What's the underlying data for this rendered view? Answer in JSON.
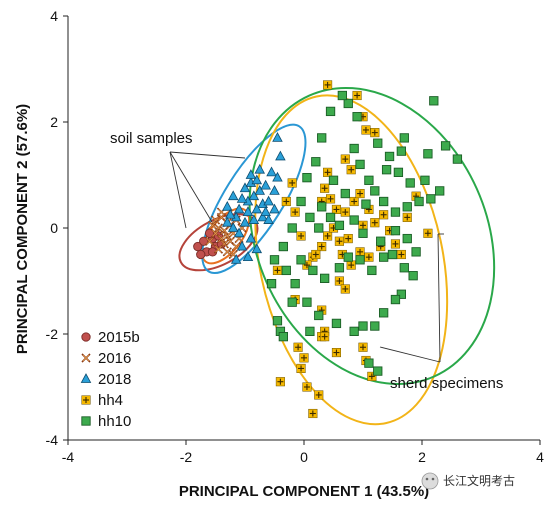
{
  "chart_data": {
    "type": "scatter",
    "xlabel": "PRINCIPAL COMPONENT 1 (43.5%)",
    "ylabel": "PRINCIPAL COMPONENT 2 (57.6%)",
    "xlim": [
      -4,
      4
    ],
    "ylim": [
      -4,
      4
    ],
    "xticks": [
      -4,
      -2,
      0,
      2,
      4
    ],
    "yticks": [
      -4,
      -2,
      0,
      2,
      4
    ],
    "grid": false,
    "legend_position": "bottom-left",
    "annotations": [
      "soil samples",
      "sherd specimens"
    ],
    "series": [
      {
        "name": "2015b",
        "marker": "circle",
        "color": "#c0504d",
        "edge": "#7a2a26",
        "points": [
          [
            -1.8,
            -0.35
          ],
          [
            -1.7,
            -0.25
          ],
          [
            -1.55,
            -0.2
          ],
          [
            -1.65,
            -0.45
          ],
          [
            -1.5,
            -0.35
          ],
          [
            -1.4,
            -0.3
          ],
          [
            -1.45,
            -0.15
          ],
          [
            -1.6,
            -0.1
          ],
          [
            -1.75,
            -0.5
          ],
          [
            -1.55,
            -0.45
          ]
        ]
      },
      {
        "name": "2016",
        "marker": "x",
        "color": "#e59a4a",
        "edge": "#8a3b16",
        "points": [
          [
            -1.5,
            0.15
          ],
          [
            -1.4,
            0.2
          ],
          [
            -1.3,
            0.1
          ],
          [
            -1.45,
            0.0
          ],
          [
            -1.35,
            -0.05
          ],
          [
            -1.25,
            0.05
          ],
          [
            -1.5,
            -0.1
          ],
          [
            -1.4,
            -0.2
          ],
          [
            -1.3,
            -0.15
          ],
          [
            -1.2,
            -0.1
          ],
          [
            -1.35,
            -0.3
          ],
          [
            -1.25,
            -0.25
          ],
          [
            -1.45,
            -0.4
          ],
          [
            -1.15,
            -0.35
          ],
          [
            -1.3,
            -0.45
          ],
          [
            -1.2,
            -0.5
          ],
          [
            -1.1,
            -0.2
          ],
          [
            -1.55,
            0.05
          ],
          [
            -1.05,
            0.0
          ],
          [
            -1.4,
            0.3
          ],
          [
            -1.6,
            -0.25
          ],
          [
            -1.15,
            0.15
          ]
        ]
      },
      {
        "name": "2018",
        "marker": "triangle",
        "color": "#2aa0d8",
        "edge": "#0e4d70",
        "points": [
          [
            -0.95,
            0.5
          ],
          [
            -1.0,
            0.75
          ],
          [
            -0.9,
            0.85
          ],
          [
            -0.8,
            0.9
          ],
          [
            -0.75,
            0.7
          ],
          [
            -0.85,
            0.6
          ],
          [
            -0.95,
            0.3
          ],
          [
            -1.05,
            0.55
          ],
          [
            -1.1,
            0.35
          ],
          [
            -0.7,
            0.45
          ],
          [
            -0.6,
            0.5
          ],
          [
            -0.65,
            0.8
          ],
          [
            -0.5,
            0.7
          ],
          [
            -0.55,
            1.05
          ],
          [
            -0.45,
            0.95
          ],
          [
            -0.75,
            1.1
          ],
          [
            -0.9,
            1.0
          ],
          [
            -1.2,
            0.6
          ],
          [
            -1.3,
            0.4
          ],
          [
            -1.15,
            0.2
          ],
          [
            -1.0,
            0.1
          ],
          [
            -0.85,
            0.15
          ],
          [
            -0.8,
            0.35
          ],
          [
            -0.7,
            0.2
          ],
          [
            -0.6,
            0.15
          ],
          [
            -1.25,
            0.25
          ],
          [
            -1.1,
            -0.1
          ],
          [
            -1.05,
            -0.35
          ],
          [
            -0.95,
            -0.55
          ],
          [
            -1.15,
            -0.6
          ],
          [
            -0.8,
            -0.4
          ],
          [
            -0.5,
            0.35
          ],
          [
            -0.4,
            1.35
          ],
          [
            -0.45,
            1.7
          ],
          [
            -0.65,
            0.3
          ],
          [
            -1.3,
            0.1
          ],
          [
            -1.2,
            0.0
          ],
          [
            -0.9,
            -0.2
          ]
        ]
      },
      {
        "name": "hh4",
        "marker": "plus-square",
        "color": "#f5b800",
        "edge": "#6b5200",
        "points": [
          [
            0.4,
            2.7
          ],
          [
            0.9,
            2.5
          ],
          [
            1.0,
            2.1
          ],
          [
            1.05,
            1.85
          ],
          [
            1.2,
            1.8
          ],
          [
            0.7,
            1.3
          ],
          [
            0.8,
            1.1
          ],
          [
            0.4,
            1.05
          ],
          [
            0.35,
            0.75
          ],
          [
            0.3,
            0.5
          ],
          [
            0.45,
            0.55
          ],
          [
            0.55,
            0.35
          ],
          [
            0.7,
            0.3
          ],
          [
            0.85,
            0.5
          ],
          [
            0.95,
            0.65
          ],
          [
            1.1,
            0.35
          ],
          [
            1.2,
            0.1
          ],
          [
            1.35,
            0.25
          ],
          [
            1.45,
            -0.05
          ],
          [
            1.55,
            -0.3
          ],
          [
            1.65,
            -0.5
          ],
          [
            1.3,
            -0.35
          ],
          [
            1.1,
            -0.55
          ],
          [
            0.95,
            -0.45
          ],
          [
            0.8,
            -0.7
          ],
          [
            0.65,
            -0.5
          ],
          [
            0.6,
            -0.25
          ],
          [
            0.4,
            -0.15
          ],
          [
            0.3,
            -0.35
          ],
          [
            0.15,
            -0.55
          ],
          [
            0.05,
            -0.7
          ],
          [
            -0.05,
            -0.15
          ],
          [
            -0.15,
            0.3
          ],
          [
            -0.3,
            0.5
          ],
          [
            -0.2,
            0.85
          ],
          [
            -0.45,
            -0.8
          ],
          [
            -0.15,
            -1.35
          ],
          [
            0.3,
            -1.55
          ],
          [
            0.6,
            -1.0
          ],
          [
            0.7,
            -1.15
          ],
          [
            0.35,
            -1.95
          ],
          [
            0.55,
            -2.35
          ],
          [
            0.3,
            -2.05
          ],
          [
            0.0,
            -2.45
          ],
          [
            -0.05,
            -2.65
          ],
          [
            0.05,
            -3.0
          ],
          [
            -0.4,
            -2.9
          ],
          [
            0.25,
            -3.15
          ],
          [
            0.15,
            -3.5
          ],
          [
            1.0,
            -2.25
          ],
          [
            1.05,
            -2.5
          ],
          [
            1.15,
            -2.8
          ],
          [
            0.35,
            -2.05
          ],
          [
            -0.1,
            -2.25
          ],
          [
            2.1,
            -0.1
          ],
          [
            1.9,
            0.6
          ],
          [
            1.75,
            0.2
          ],
          [
            0.2,
            -0.5
          ],
          [
            0.5,
            0.0
          ],
          [
            0.75,
            -0.2
          ],
          [
            1.0,
            0.05
          ]
        ]
      },
      {
        "name": "hh10",
        "marker": "square",
        "color": "#3daa4d",
        "edge": "#1b5e26",
        "points": [
          [
            2.2,
            2.4
          ],
          [
            2.6,
            1.3
          ],
          [
            2.4,
            1.55
          ],
          [
            2.1,
            1.4
          ],
          [
            1.7,
            1.7
          ],
          [
            1.65,
            1.45
          ],
          [
            1.45,
            1.35
          ],
          [
            1.4,
            1.1
          ],
          [
            1.6,
            1.05
          ],
          [
            1.8,
            0.85
          ],
          [
            2.05,
            0.9
          ],
          [
            2.3,
            0.7
          ],
          [
            2.15,
            0.55
          ],
          [
            1.95,
            0.5
          ],
          [
            1.75,
            0.4
          ],
          [
            1.55,
            0.3
          ],
          [
            1.35,
            0.5
          ],
          [
            1.2,
            0.7
          ],
          [
            1.1,
            0.9
          ],
          [
            0.95,
            1.2
          ],
          [
            0.85,
            1.5
          ],
          [
            0.9,
            2.1
          ],
          [
            0.75,
            2.35
          ],
          [
            0.65,
            2.5
          ],
          [
            0.45,
            2.2
          ],
          [
            0.3,
            1.7
          ],
          [
            0.2,
            1.25
          ],
          [
            0.05,
            0.95
          ],
          [
            -0.05,
            0.5
          ],
          [
            0.1,
            0.2
          ],
          [
            0.25,
            0.0
          ],
          [
            0.45,
            0.2
          ],
          [
            0.6,
            0.05
          ],
          [
            0.85,
            0.15
          ],
          [
            1.0,
            -0.1
          ],
          [
            1.3,
            -0.25
          ],
          [
            1.5,
            -0.5
          ],
          [
            1.7,
            -0.75
          ],
          [
            1.85,
            -0.9
          ],
          [
            1.65,
            -1.25
          ],
          [
            1.55,
            -1.35
          ],
          [
            1.35,
            -1.6
          ],
          [
            1.2,
            -1.85
          ],
          [
            1.0,
            -1.85
          ],
          [
            0.85,
            -1.95
          ],
          [
            0.55,
            -1.8
          ],
          [
            0.25,
            -1.65
          ],
          [
            0.05,
            -1.4
          ],
          [
            -0.15,
            -1.05
          ],
          [
            -0.3,
            -0.8
          ],
          [
            -0.5,
            -0.6
          ],
          [
            -0.35,
            -0.35
          ],
          [
            -0.2,
            0.0
          ],
          [
            -0.05,
            -0.6
          ],
          [
            0.15,
            -0.8
          ],
          [
            0.35,
            -0.95
          ],
          [
            0.6,
            -0.75
          ],
          [
            0.75,
            -0.55
          ],
          [
            0.95,
            -0.6
          ],
          [
            1.15,
            -0.8
          ],
          [
            1.35,
            -0.55
          ],
          [
            1.55,
            -0.05
          ],
          [
            1.75,
            -0.2
          ],
          [
            0.1,
            -1.95
          ],
          [
            -0.45,
            -1.75
          ],
          [
            -0.4,
            -1.95
          ],
          [
            1.1,
            -2.55
          ],
          [
            1.25,
            -2.7
          ],
          [
            -0.35,
            -2.05
          ],
          [
            -0.55,
            -1.05
          ],
          [
            -0.2,
            -1.4
          ],
          [
            1.9,
            -0.45
          ],
          [
            0.7,
            0.65
          ],
          [
            0.5,
            0.9
          ],
          [
            0.3,
            0.4
          ],
          [
            1.05,
            0.45
          ],
          [
            1.25,
            1.6
          ]
        ]
      }
    ],
    "ellipses": [
      {
        "group": "2015b",
        "color": "#b5433a",
        "cx": -1.45,
        "cy": -0.27,
        "rx": 0.72,
        "ry": 0.42,
        "angle_deg": 28
      },
      {
        "group": "2016",
        "color": "#e87020",
        "cx": -1.33,
        "cy": -0.15,
        "rx": 0.55,
        "ry": 0.3,
        "angle_deg": 52
      },
      {
        "group": "2018",
        "color": "#2a97d4",
        "cx": -0.85,
        "cy": 0.55,
        "rx": 1.45,
        "ry": 0.55,
        "angle_deg": 58
      },
      {
        "group": "hh4",
        "color": "#f2b418",
        "cx": 0.8,
        "cy": -0.6,
        "rx": 1.55,
        "ry": 3.15,
        "angle_deg": 12
      },
      {
        "group": "hh10",
        "color": "#2aa84a",
        "cx": 1.15,
        "cy": -0.15,
        "rx": 1.95,
        "ry": 2.9,
        "angle_deg": 24
      }
    ]
  },
  "watermark": {
    "icon": "wechat-icon",
    "text": "长江文明考古"
  }
}
